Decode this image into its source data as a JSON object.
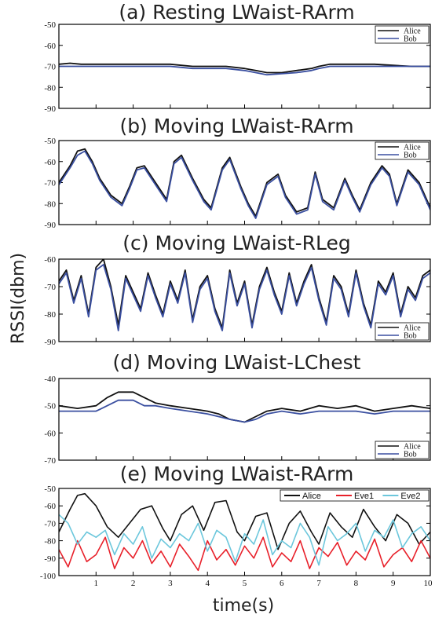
{
  "figure": {
    "ylabel": "RSSI(dbm)",
    "xlabel": "time(s)"
  },
  "colors": {
    "Alice": "#111111",
    "Bob": "#3a4fa0",
    "Eve1": "#e8202a",
    "Eve2": "#6cc7dc"
  },
  "chart_data": [
    {
      "type": "line",
      "title": "(a) Resting LWaist-RArm",
      "ylim": [
        -90,
        -50
      ],
      "yticks": [
        "-50",
        "-60",
        "-70",
        "-80",
        "-90"
      ],
      "xlim": [
        0,
        10
      ],
      "legend": "top-right",
      "series": [
        {
          "name": "Alice",
          "x": [
            0,
            0.3,
            0.6,
            1,
            1.5,
            2,
            2.5,
            3,
            3.3,
            3.6,
            4,
            4.5,
            5,
            5.3,
            5.6,
            6,
            6.4,
            6.8,
            7,
            7.3,
            7.6,
            8,
            8.5,
            9,
            9.5,
            10
          ],
          "values": [
            -69,
            -68.5,
            -69,
            -69,
            -69,
            -69,
            -69,
            -69,
            -69.5,
            -70,
            -70,
            -70,
            -71,
            -72,
            -73,
            -73,
            -72,
            -71,
            -70,
            -69,
            -69,
            -69,
            -69,
            -69.5,
            -70,
            -70
          ]
        },
        {
          "name": "Bob",
          "x": [
            0,
            0.3,
            0.6,
            1,
            1.5,
            2,
            2.5,
            3,
            3.3,
            3.6,
            4,
            4.5,
            5,
            5.3,
            5.6,
            6,
            6.4,
            6.8,
            7,
            7.3,
            7.6,
            8,
            8.5,
            9,
            9.5,
            10
          ],
          "values": [
            -70,
            -70,
            -70,
            -70,
            -70,
            -70,
            -70,
            -70,
            -70.5,
            -71,
            -71,
            -71,
            -72,
            -73,
            -74,
            -73.5,
            -73,
            -72,
            -71,
            -70,
            -70,
            -70,
            -70,
            -70,
            -70,
            -70
          ]
        }
      ]
    },
    {
      "type": "line",
      "title": "(b) Moving LWaist-RArm",
      "ylim": [
        -90,
        -50
      ],
      "yticks": [
        "-50",
        "-60",
        "-70",
        "-80",
        "-90"
      ],
      "xlim": [
        0,
        10
      ],
      "legend": "top-right",
      "series": [
        {
          "name": "Alice",
          "x": [
            0,
            0.3,
            0.5,
            0.7,
            0.9,
            1.1,
            1.4,
            1.7,
            1.9,
            2.1,
            2.3,
            2.6,
            2.9,
            3.1,
            3.3,
            3.6,
            3.9,
            4.1,
            4.4,
            4.6,
            4.9,
            5.1,
            5.3,
            5.6,
            5.9,
            6.1,
            6.4,
            6.7,
            6.9,
            7.1,
            7.4,
            7.7,
            7.9,
            8.1,
            8.4,
            8.7,
            8.9,
            9.1,
            9.4,
            9.7,
            10
          ],
          "values": [
            -70,
            -62,
            -55,
            -54,
            -60,
            -68,
            -76,
            -80,
            -72,
            -63,
            -62,
            -70,
            -78,
            -60,
            -57,
            -68,
            -78,
            -82,
            -63,
            -58,
            -72,
            -80,
            -86,
            -70,
            -66,
            -76,
            -84,
            -82,
            -65,
            -78,
            -82,
            -68,
            -76,
            -83,
            -70,
            -62,
            -66,
            -80,
            -64,
            -70,
            -82
          ]
        },
        {
          "name": "Bob",
          "x": [
            0,
            0.3,
            0.5,
            0.7,
            0.9,
            1.1,
            1.4,
            1.7,
            1.9,
            2.1,
            2.3,
            2.6,
            2.9,
            3.1,
            3.3,
            3.6,
            3.9,
            4.1,
            4.4,
            4.6,
            4.9,
            5.1,
            5.3,
            5.6,
            5.9,
            6.1,
            6.4,
            6.7,
            6.9,
            7.1,
            7.4,
            7.7,
            7.9,
            8.1,
            8.4,
            8.7,
            8.9,
            9.1,
            9.4,
            9.7,
            10
          ],
          "values": [
            -71,
            -63,
            -57,
            -55,
            -61,
            -69,
            -77,
            -81,
            -73,
            -64,
            -63,
            -71,
            -79,
            -61,
            -58,
            -69,
            -79,
            -83,
            -64,
            -59,
            -73,
            -81,
            -87,
            -71,
            -67,
            -77,
            -85,
            -83,
            -66,
            -79,
            -83,
            -69,
            -77,
            -84,
            -71,
            -63,
            -67,
            -81,
            -65,
            -71,
            -83
          ]
        }
      ]
    },
    {
      "type": "line",
      "title": "(c) Moving LWaist-RLeg",
      "ylim": [
        -90,
        -60
      ],
      "yticks": [
        "-60",
        "-70",
        "-80",
        "-90"
      ],
      "xlim": [
        0,
        10
      ],
      "legend": "bottom-right",
      "series": [
        {
          "name": "Alice",
          "x": [
            0,
            0.2,
            0.4,
            0.6,
            0.8,
            1,
            1.2,
            1.4,
            1.6,
            1.8,
            2,
            2.2,
            2.4,
            2.6,
            2.8,
            3,
            3.2,
            3.4,
            3.6,
            3.8,
            4,
            4.2,
            4.4,
            4.6,
            4.8,
            5,
            5.2,
            5.4,
            5.6,
            5.8,
            6,
            6.2,
            6.4,
            6.6,
            6.8,
            7,
            7.2,
            7.4,
            7.6,
            7.8,
            8,
            8.2,
            8.4,
            8.6,
            8.8,
            9,
            9.2,
            9.4,
            9.6,
            9.8,
            10
          ],
          "values": [
            -68,
            -64,
            -75,
            -66,
            -80,
            -63,
            -60,
            -70,
            -84,
            -66,
            -72,
            -78,
            -65,
            -73,
            -80,
            -68,
            -75,
            -64,
            -82,
            -70,
            -66,
            -78,
            -85,
            -64,
            -76,
            -68,
            -84,
            -70,
            -63,
            -72,
            -79,
            -65,
            -76,
            -68,
            -62,
            -74,
            -83,
            -66,
            -70,
            -80,
            -64,
            -76,
            -84,
            -68,
            -72,
            -65,
            -80,
            -70,
            -74,
            -66,
            -64
          ]
        },
        {
          "name": "Bob",
          "x": [
            0,
            0.2,
            0.4,
            0.6,
            0.8,
            1,
            1.2,
            1.4,
            1.6,
            1.8,
            2,
            2.2,
            2.4,
            2.6,
            2.8,
            3,
            3.2,
            3.4,
            3.6,
            3.8,
            4,
            4.2,
            4.4,
            4.6,
            4.8,
            5,
            5.2,
            5.4,
            5.6,
            5.8,
            6,
            6.2,
            6.4,
            6.6,
            6.8,
            7,
            7.2,
            7.4,
            7.6,
            7.8,
            8,
            8.2,
            8.4,
            8.6,
            8.8,
            9,
            9.2,
            9.4,
            9.6,
            9.8,
            10
          ],
          "values": [
            -69,
            -65,
            -76,
            -67,
            -81,
            -64,
            -62,
            -71,
            -86,
            -67,
            -73,
            -79,
            -66,
            -74,
            -81,
            -69,
            -76,
            -65,
            -83,
            -71,
            -67,
            -79,
            -86,
            -65,
            -77,
            -69,
            -85,
            -71,
            -64,
            -73,
            -80,
            -66,
            -77,
            -69,
            -63,
            -75,
            -84,
            -67,
            -71,
            -81,
            -65,
            -77,
            -85,
            -69,
            -73,
            -66,
            -81,
            -71,
            -75,
            -67,
            -65
          ]
        }
      ]
    },
    {
      "type": "line",
      "title": "(d) Moving LWaist-LChest",
      "ylim": [
        -70,
        -40
      ],
      "yticks": [
        "-40",
        "-50",
        "-60",
        "-70"
      ],
      "xlim": [
        0,
        10
      ],
      "legend": "bottom-right",
      "series": [
        {
          "name": "Alice",
          "x": [
            0,
            0.5,
            1,
            1.3,
            1.6,
            2,
            2.3,
            2.6,
            3,
            3.5,
            4,
            4.3,
            4.6,
            5,
            5.3,
            5.6,
            6,
            6.5,
            7,
            7.5,
            8,
            8.5,
            9,
            9.5,
            10
          ],
          "values": [
            -50,
            -51,
            -50,
            -47,
            -45,
            -45,
            -47,
            -49,
            -50,
            -51,
            -52,
            -53,
            -55,
            -56,
            -54,
            -52,
            -51,
            -52,
            -50,
            -51,
            -50,
            -52,
            -51,
            -50,
            -51
          ]
        },
        {
          "name": "Bob",
          "x": [
            0,
            0.5,
            1,
            1.3,
            1.6,
            2,
            2.3,
            2.6,
            3,
            3.5,
            4,
            4.3,
            4.6,
            5,
            5.3,
            5.6,
            6,
            6.5,
            7,
            7.5,
            8,
            8.5,
            9,
            9.5,
            10
          ],
          "values": [
            -52,
            -52,
            -52,
            -50,
            -48,
            -48,
            -50,
            -50,
            -51,
            -52,
            -53,
            -54,
            -55,
            -56,
            -55,
            -53,
            -52,
            -53,
            -52,
            -52,
            -52,
            -53,
            -52,
            -52,
            -52
          ]
        }
      ]
    },
    {
      "type": "line",
      "title": "(e) Moving LWaist-RArm",
      "ylim": [
        -100,
        -50
      ],
      "yticks": [
        "-50",
        "-60",
        "-70",
        "-80",
        "-90",
        "-100"
      ],
      "xlim": [
        0,
        10
      ],
      "xticks": [
        "1",
        "2",
        "3",
        "4",
        "5",
        "6",
        "7",
        "8",
        "9",
        "10"
      ],
      "legend": "top-right",
      "series": [
        {
          "name": "Alice",
          "x": [
            0,
            0.3,
            0.5,
            0.7,
            1,
            1.3,
            1.6,
            1.9,
            2.2,
            2.5,
            2.8,
            3,
            3.3,
            3.6,
            3.9,
            4.2,
            4.5,
            4.8,
            5,
            5.3,
            5.6,
            5.9,
            6.2,
            6.5,
            6.8,
            7,
            7.3,
            7.6,
            7.9,
            8.2,
            8.5,
            8.8,
            9.1,
            9.4,
            9.7,
            10
          ],
          "values": [
            -75,
            -62,
            -54,
            -53,
            -60,
            -72,
            -78,
            -70,
            -62,
            -60,
            -73,
            -80,
            -65,
            -60,
            -74,
            -58,
            -57,
            -75,
            -80,
            -66,
            -64,
            -85,
            -70,
            -63,
            -75,
            -82,
            -64,
            -72,
            -78,
            -62,
            -72,
            -80,
            -65,
            -70,
            -82,
            -75
          ]
        },
        {
          "name": "Eve1",
          "x": [
            0,
            0.25,
            0.5,
            0.75,
            1,
            1.25,
            1.5,
            1.75,
            2,
            2.25,
            2.5,
            2.75,
            3,
            3.25,
            3.5,
            3.75,
            4,
            4.25,
            4.5,
            4.75,
            5,
            5.25,
            5.5,
            5.75,
            6,
            6.25,
            6.5,
            6.75,
            7,
            7.25,
            7.5,
            7.75,
            8,
            8.25,
            8.5,
            8.75,
            9,
            9.25,
            9.5,
            9.75,
            10
          ],
          "values": [
            -85,
            -95,
            -80,
            -92,
            -88,
            -78,
            -96,
            -84,
            -90,
            -80,
            -93,
            -86,
            -95,
            -82,
            -89,
            -97,
            -80,
            -91,
            -85,
            -94,
            -83,
            -90,
            -78,
            -95,
            -87,
            -92,
            -80,
            -96,
            -84,
            -89,
            -81,
            -94,
            -86,
            -91,
            -79,
            -95,
            -88,
            -84,
            -92,
            -80,
            -90
          ]
        },
        {
          "name": "Eve2",
          "x": [
            0,
            0.25,
            0.5,
            0.75,
            1,
            1.25,
            1.5,
            1.75,
            2,
            2.25,
            2.5,
            2.75,
            3,
            3.25,
            3.5,
            3.75,
            4,
            4.25,
            4.5,
            4.75,
            5,
            5.25,
            5.5,
            5.75,
            6,
            6.25,
            6.5,
            6.75,
            7,
            7.25,
            7.5,
            7.75,
            8,
            8.25,
            8.5,
            8.75,
            9,
            9.25,
            9.5,
            9.75,
            10
          ],
          "values": [
            -65,
            -70,
            -82,
            -75,
            -78,
            -74,
            -88,
            -76,
            -82,
            -72,
            -90,
            -79,
            -84,
            -76,
            -80,
            -70,
            -86,
            -74,
            -78,
            -92,
            -76,
            -82,
            -68,
            -88,
            -80,
            -84,
            -70,
            -78,
            -94,
            -72,
            -80,
            -76,
            -70,
            -86,
            -74,
            -78,
            -68,
            -84,
            -76,
            -72,
            -80
          ]
        }
      ]
    }
  ]
}
